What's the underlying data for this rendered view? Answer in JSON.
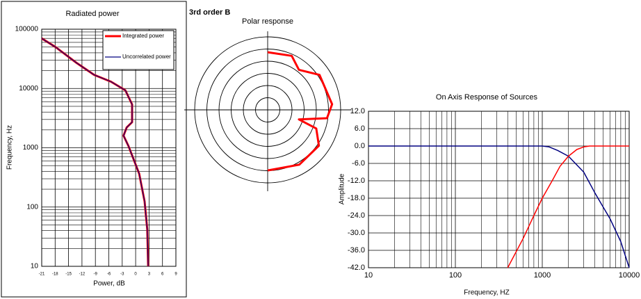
{
  "chart_data": [
    {
      "type": "line",
      "title": "Radiated power",
      "xlabel": "Power, dB",
      "ylabel": "Frequency, Hz",
      "xlim": [
        -21,
        9
      ],
      "xticks": [
        -21,
        -18,
        -15,
        -12,
        -9,
        -6,
        -3,
        0,
        3,
        6,
        9
      ],
      "ylim": [
        10,
        100000
      ],
      "yticks": [
        10,
        100,
        1000,
        10000,
        100000
      ],
      "yscale": "log",
      "grid": true,
      "legend": "upper right",
      "series": [
        {
          "name": "Integrated power",
          "color": "#ff0000",
          "x": [
            -21,
            -17.9,
            -13.2,
            -9.3,
            -5.5,
            -2.3,
            -0.8,
            -0.8,
            -2.0,
            -2.7,
            -1.6,
            0.8,
            2.0,
            2.6,
            2.8
          ],
          "values": [
            70000,
            50000,
            27000,
            17000,
            13000,
            9300,
            5400,
            2700,
            2200,
            1600,
            1070,
            365,
            124,
            42,
            10
          ]
        },
        {
          "name": "Uncorrelated power",
          "color": "#000080",
          "x": [
            -21,
            -17.9,
            -13.2,
            -9.3,
            -5.5,
            -2.3,
            -0.8,
            -0.8,
            -2.0,
            -2.7,
            -1.6,
            0.8,
            2.0,
            2.6,
            2.8
          ],
          "values": [
            70000,
            50000,
            27000,
            17000,
            13000,
            9300,
            5400,
            2700,
            2200,
            1600,
            1070,
            365,
            124,
            42,
            10
          ]
        }
      ]
    },
    {
      "type": "polar",
      "title": "3rd order B",
      "subtitle": "Polar response",
      "rlim": [
        0,
        30
      ],
      "rticks": [
        5,
        10,
        15,
        20,
        25,
        30
      ],
      "series": [
        {
          "color": "#ff0000",
          "x": [
            0,
            24,
            38,
            56,
            85,
            98,
            107,
            111,
            125,
            150,
            180
          ],
          "values": [
            23.7,
            24.3,
            20.9,
            25.7,
            26.6,
            24.6,
            13.4,
            21.4,
            25.7,
            26,
            24.9
          ]
        }
      ]
    },
    {
      "type": "line",
      "title": "On Axis Response of Sources",
      "xlabel": "Frequency, HZ",
      "ylabel": "Amplitude",
      "xscale": "log",
      "xlim": [
        10,
        10000
      ],
      "xticks": [
        10,
        100,
        1000,
        10000
      ],
      "ylim": [
        -42,
        12
      ],
      "yticks": [
        {
          "value": 12,
          "label": "12.0"
        },
        {
          "value": 6,
          "label": "6.0"
        },
        {
          "value": 0,
          "label": "0.0"
        },
        {
          "value": -6,
          "label": "-6.0"
        },
        {
          "value": -12,
          "label": "-12.0"
        },
        {
          "value": -18,
          "label": "-18.0"
        },
        {
          "value": -24,
          "label": "-24.0"
        },
        {
          "value": -30,
          "label": "-30.0"
        },
        {
          "value": -36,
          "label": "-36.0"
        },
        {
          "value": -42,
          "label": "-42.0"
        }
      ],
      "grid": true,
      "series": [
        {
          "color": "#000080",
          "x": [
            10,
            100,
            1000,
            1200,
            1500,
            2000,
            3000,
            4000,
            5000,
            6000,
            8000,
            10000
          ],
          "values": [
            0,
            0,
            0,
            -0.3,
            -1.5,
            -3.5,
            -9,
            -16,
            -21,
            -25,
            -33,
            -42
          ]
        },
        {
          "color": "#ff0000",
          "x": [
            400,
            600,
            800,
            1000,
            1300,
            1600,
            2000,
            2500,
            3000,
            3500,
            10000
          ],
          "values": [
            -42,
            -32,
            -24,
            -18,
            -12,
            -7,
            -3.5,
            -1.2,
            -0.3,
            0,
            0
          ]
        }
      ]
    }
  ]
}
